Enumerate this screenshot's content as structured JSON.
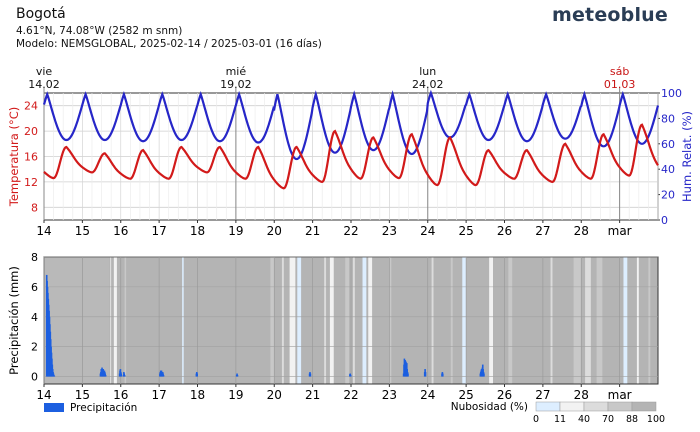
{
  "header": {
    "location": "Bogotá",
    "coords": "4.61°N, 74.08°W (2582 m snm)",
    "model": "Modelo: NEMSGLOBAL, 2025-02-14 / 2025-03-01 (16 días)",
    "brand": "meteoblue"
  },
  "colors": {
    "temperature": "#d21a1a",
    "humidity": "#2626c8",
    "precip": "#1c5fe0",
    "weekend": "#c81414"
  },
  "chart_data": [
    {
      "type": "line",
      "title": "",
      "x_unit": "days since 2025-02-14 00:00",
      "xlim": [
        0,
        16
      ],
      "x_ticks": [
        0,
        1,
        2,
        3,
        4,
        5,
        6,
        7,
        8,
        9,
        10,
        11,
        12,
        13,
        14,
        15
      ],
      "x_tick_labels": [
        "14",
        "15",
        "16",
        "17",
        "18",
        "19",
        "20",
        "21",
        "22",
        "23",
        "24",
        "25",
        "26",
        "27",
        "28",
        "mar"
      ],
      "top_day_markers": [
        {
          "x": 0,
          "day": "vie",
          "date": "14.02",
          "weekend": false
        },
        {
          "x": 5,
          "day": "mié",
          "date": "19.02",
          "weekend": false
        },
        {
          "x": 10,
          "day": "lun",
          "date": "24.02",
          "weekend": false
        },
        {
          "x": 15,
          "day": "sáb",
          "date": "01.03",
          "weekend": true
        }
      ],
      "y_left": {
        "label": "Temperatura (°C)",
        "lim": [
          6,
          26
        ],
        "ticks": [
          8,
          12,
          16,
          20,
          24
        ]
      },
      "y_right": {
        "label": "Hum. Relat. (%)",
        "lim": [
          0,
          100
        ],
        "ticks": [
          0,
          20,
          40,
          60,
          80,
          100
        ]
      },
      "temperature_daily": {
        "min": [
          12.6,
          13.5,
          12.5,
          12.5,
          13.5,
          12.5,
          11.0,
          12.0,
          12.5,
          12.6,
          11.5,
          11.5,
          12.5,
          12.0,
          12.5,
          13.0
        ],
        "max": [
          17.5,
          16.5,
          17.0,
          17.5,
          17.5,
          17.5,
          17.5,
          20.0,
          19.0,
          19.5,
          19.0,
          17.0,
          17.0,
          18.0,
          19.5,
          21.0
        ]
      },
      "humidity_daily": {
        "min": [
          63,
          63,
          62,
          63,
          62,
          61,
          48,
          53,
          55,
          52,
          65,
          63,
          62,
          64,
          58,
          60
        ],
        "max": [
          99,
          99,
          99,
          99,
          99,
          99,
          99,
          99,
          99,
          99,
          100,
          99,
          99,
          99,
          99,
          99
        ]
      },
      "series": [
        {
          "name": "Temperatura",
          "axis": "left"
        },
        {
          "name": "Hum. Relat.",
          "axis": "right"
        }
      ]
    },
    {
      "type": "bar",
      "title": "",
      "xlim": [
        0,
        16
      ],
      "x_ticks": [
        0,
        1,
        2,
        3,
        4,
        5,
        6,
        7,
        8,
        9,
        10,
        11,
        12,
        13,
        14,
        15
      ],
      "x_tick_labels": [
        "14",
        "15",
        "16",
        "17",
        "18",
        "19",
        "20",
        "21",
        "22",
        "23",
        "24",
        "25",
        "26",
        "27",
        "28",
        "mar"
      ],
      "y": {
        "label": "Precipitación (mm)",
        "lim": [
          -0.5,
          8
        ],
        "ticks": [
          0,
          2,
          4,
          6,
          8
        ]
      },
      "precip_events": [
        {
          "x": 0.05,
          "values": [
            6.8,
            6.4,
            6.0,
            5.6,
            5.2,
            4.8,
            4.4,
            4.0,
            3.5,
            3.0,
            2.5,
            2.0,
            1.6,
            1.2,
            0.8,
            0.5,
            0.3,
            0.2,
            0.1,
            0.05
          ]
        },
        {
          "x": 1.45,
          "values": [
            0.2,
            0.3,
            0.5,
            0.3,
            0.6,
            0.5,
            0.4,
            0.5,
            0.3,
            0.2,
            0.4,
            0.3,
            0.2,
            0.1
          ]
        },
        {
          "x": 1.95,
          "values": [
            0.2,
            0.4,
            0.5,
            0.3,
            0.2
          ]
        },
        {
          "x": 2.05,
          "values": [
            0.1,
            0.3,
            0.2,
            0.1
          ]
        },
        {
          "x": 3.0,
          "values": [
            0.2,
            0.3,
            0.4,
            0.3,
            0.4,
            0.3,
            0.2,
            0.3,
            0.2,
            0.1
          ]
        },
        {
          "x": 3.95,
          "values": [
            0.2,
            0.3,
            0.2
          ]
        },
        {
          "x": 5.0,
          "values": [
            0.1,
            0.2,
            0.1
          ]
        },
        {
          "x": 6.9,
          "values": [
            0.2,
            0.3,
            0.2
          ]
        },
        {
          "x": 7.95,
          "values": [
            0.15,
            0.2,
            0.1
          ]
        },
        {
          "x": 9.35,
          "values": [
            0.2,
            0.8,
            1.2,
            0.9,
            1.1,
            0.7,
            1.0,
            0.6,
            0.9,
            0.5,
            0.3,
            0.2
          ]
        },
        {
          "x": 9.9,
          "values": [
            0.3,
            0.5,
            0.3
          ]
        },
        {
          "x": 10.35,
          "values": [
            0.2,
            0.3,
            0.2
          ]
        },
        {
          "x": 11.35,
          "values": [
            0.2,
            0.3,
            0.4,
            0.5,
            0.3,
            0.6,
            0.8,
            0.5,
            0.3,
            0.2
          ]
        }
      ],
      "cloud_bands": [
        {
          "from": 0,
          "to": 1.7,
          "class": 88
        },
        {
          "from": 1.72,
          "to": 1.75,
          "class": 40
        },
        {
          "from": 1.82,
          "to": 1.9,
          "class": 11
        },
        {
          "from": 2.1,
          "to": 2.14,
          "class": 70
        },
        {
          "from": 3.6,
          "to": 3.64,
          "class": 0
        },
        {
          "from": 5.9,
          "to": 6.0,
          "class": 70
        },
        {
          "from": 6.2,
          "to": 6.25,
          "class": 40
        },
        {
          "from": 6.4,
          "to": 6.55,
          "class": 11
        },
        {
          "from": 6.6,
          "to": 6.7,
          "class": 0
        },
        {
          "from": 7.3,
          "to": 7.35,
          "class": 40
        },
        {
          "from": 7.45,
          "to": 7.55,
          "class": 11
        },
        {
          "from": 7.85,
          "to": 7.95,
          "class": 70
        },
        {
          "from": 8.05,
          "to": 8.1,
          "class": 40
        },
        {
          "from": 8.3,
          "to": 8.4,
          "class": 0
        },
        {
          "from": 8.45,
          "to": 8.55,
          "class": 11
        },
        {
          "from": 9.0,
          "to": 9.05,
          "class": 70
        },
        {
          "from": 10.1,
          "to": 10.15,
          "class": 40
        },
        {
          "from": 10.6,
          "to": 10.65,
          "class": 70
        },
        {
          "from": 10.9,
          "to": 11.0,
          "class": 0
        },
        {
          "from": 11.6,
          "to": 11.7,
          "class": 11
        },
        {
          "from": 12.1,
          "to": 12.2,
          "class": 70
        },
        {
          "from": 13.2,
          "to": 13.25,
          "class": 40
        },
        {
          "from": 13.8,
          "to": 14.0,
          "class": 70
        },
        {
          "from": 14.1,
          "to": 14.25,
          "class": 40
        },
        {
          "from": 14.4,
          "to": 14.55,
          "class": 70
        },
        {
          "from": 15.1,
          "to": 15.2,
          "class": 0
        },
        {
          "from": 15.45,
          "to": 15.5,
          "class": 11
        },
        {
          "from": 15.75,
          "to": 15.8,
          "class": 70
        }
      ]
    }
  ],
  "legend": {
    "precip_label": "Precipitación",
    "cloud_label": "Nubosidad (%)",
    "cloud_ticks": [
      "0",
      "11",
      "40",
      "70",
      "88",
      "100"
    ],
    "cloud_colors": [
      "#ddeeff",
      "#f2f2f2",
      "#dcdcdc",
      "#c8c8c8",
      "#b4b4b4"
    ]
  }
}
